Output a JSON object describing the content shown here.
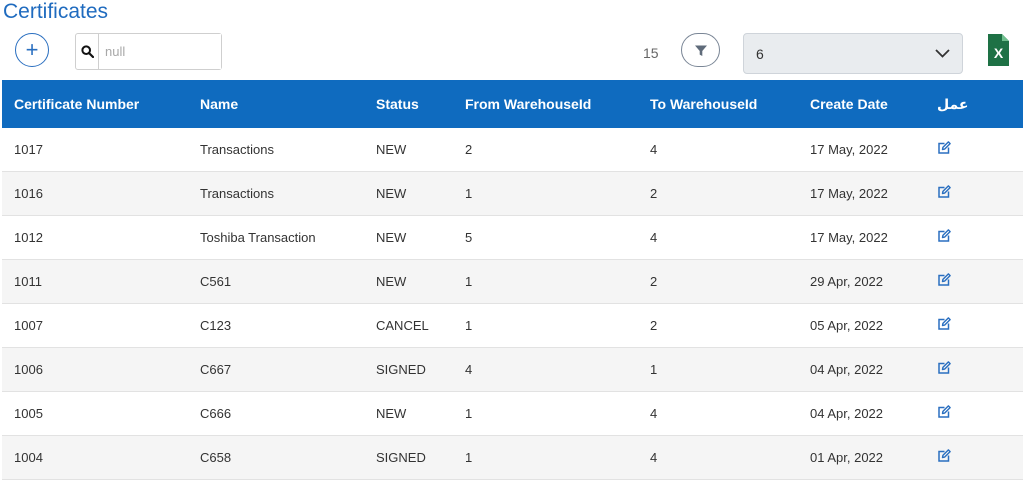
{
  "page": {
    "title": "Certificates"
  },
  "toolbar": {
    "add_icon": "plus-icon",
    "search_placeholder": "null",
    "search_value": "",
    "search_icon": "search-icon",
    "count": "15",
    "filter_icon": "funnel-icon",
    "page_size_value": "6",
    "export_icon": "excel-icon"
  },
  "table": {
    "columns": [
      "Certificate Number",
      "Name",
      "Status",
      "From WarehouseId",
      "To WarehouseId",
      "Create Date",
      "عمل"
    ],
    "rows": [
      {
        "number": "1017",
        "name": "Transactions",
        "status": "NEW",
        "from": "2",
        "to": "4",
        "date": "17 May, 2022"
      },
      {
        "number": "1016",
        "name": "Transactions",
        "status": "NEW",
        "from": "1",
        "to": "2",
        "date": "17 May, 2022"
      },
      {
        "number": "1012",
        "name": "Toshiba Transaction",
        "status": "NEW",
        "from": "5",
        "to": "4",
        "date": "17 May, 2022"
      },
      {
        "number": "1011",
        "name": "C561",
        "status": "NEW",
        "from": "1",
        "to": "2",
        "date": "29 Apr, 2022"
      },
      {
        "number": "1007",
        "name": "C123",
        "status": "CANCEL",
        "from": "1",
        "to": "2",
        "date": "05 Apr, 2022"
      },
      {
        "number": "1006",
        "name": "C667",
        "status": "SIGNED",
        "from": "4",
        "to": "1",
        "date": "04 Apr, 2022"
      },
      {
        "number": "1005",
        "name": "C666",
        "status": "NEW",
        "from": "1",
        "to": "4",
        "date": "04 Apr, 2022"
      },
      {
        "number": "1004",
        "name": "C658",
        "status": "SIGNED",
        "from": "1",
        "to": "4",
        "date": "01 Apr, 2022"
      }
    ]
  },
  "colors": {
    "primary": "#0f6bbf",
    "title": "#1f6bbf",
    "excel": "#1e7145"
  }
}
